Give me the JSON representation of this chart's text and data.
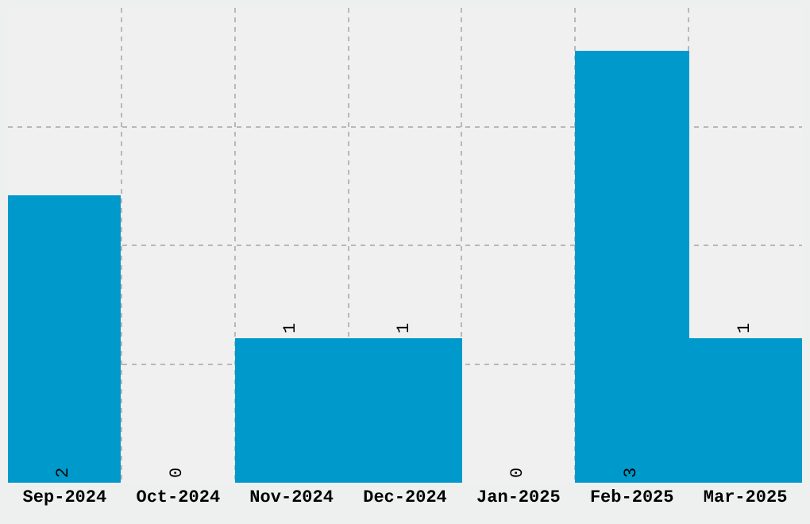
{
  "chart_data": {
    "type": "bar",
    "categories": [
      "Sep-2024",
      "Oct-2024",
      "Nov-2024",
      "Dec-2024",
      "Jan-2025",
      "Feb-2025",
      "Mar-2025"
    ],
    "values": [
      2,
      0,
      1,
      1,
      0,
      3,
      1
    ],
    "color": "#0099cc",
    "data_labels": true,
    "grid": true,
    "tick_labels": "x",
    "relative": false,
    "ylim": [
      0,
      3.3
    ],
    "yticks": [
      {
        "value": 0.825,
        "label": null
      },
      {
        "value": 1.65,
        "label": null
      },
      {
        "value": 2.475,
        "label": null
      }
    ]
  }
}
